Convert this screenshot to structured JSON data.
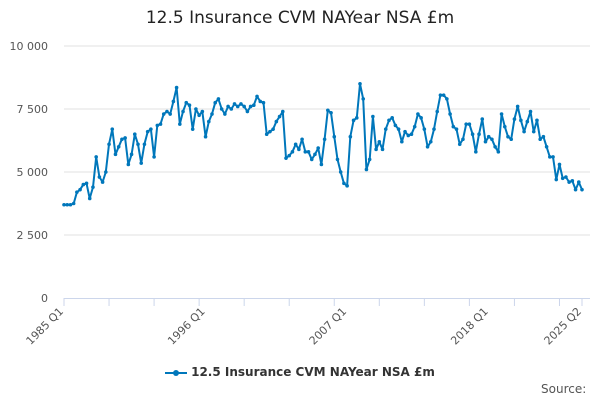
{
  "chart_data": {
    "type": "line",
    "title": "12.5 Insurance CVM NAYear NSA £m",
    "xlabel": "",
    "ylabel": "",
    "ylim": [
      0,
      10000
    ],
    "yticks": [
      0,
      2500,
      5000,
      7500,
      10000
    ],
    "ytick_labels": [
      "0",
      "2 500",
      "5 000",
      "7 500",
      "10 000"
    ],
    "xtick_labels": [
      {
        "label": "1985 Q1",
        "index": 0
      },
      {
        "label": "1996 Q1",
        "index": 44
      },
      {
        "label": "2007 Q1",
        "index": 88
      },
      {
        "label": "2018 Q1",
        "index": 132
      },
      {
        "label": "2025 Q2",
        "index": 161
      }
    ],
    "grid": true,
    "legend_position": "bottom",
    "start": "1985 Q1",
    "end": "2025 Q2",
    "frequency": "quarterly",
    "series": [
      {
        "name": "12.5 Insurance CVM NAYear NSA £m",
        "color": "#0077bb",
        "values": [
          3700,
          3700,
          3700,
          3750,
          4200,
          4300,
          4500,
          4550,
          3950,
          4400,
          5600,
          4800,
          4600,
          5000,
          6100,
          6700,
          5700,
          6000,
          6300,
          6350,
          5300,
          5700,
          6500,
          6100,
          5350,
          6100,
          6600,
          6700,
          5600,
          6850,
          6900,
          7300,
          7400,
          7300,
          7800,
          8350,
          6900,
          7400,
          7750,
          7650,
          6700,
          7500,
          7250,
          7400,
          6400,
          7000,
          7300,
          7750,
          7900,
          7500,
          7300,
          7600,
          7500,
          7700,
          7600,
          7700,
          7600,
          7400,
          7600,
          7650,
          8000,
          7800,
          7750,
          6500,
          6600,
          6700,
          7000,
          7200,
          7400,
          5550,
          5650,
          5800,
          6100,
          5900,
          6300,
          5800,
          5800,
          5500,
          5700,
          5950,
          5300,
          6300,
          7450,
          7350,
          6400,
          5500,
          5000,
          4550,
          4450,
          6400,
          7050,
          7150,
          8500,
          7900,
          5100,
          5500,
          7200,
          5900,
          6200,
          5900,
          6700,
          7050,
          7150,
          6850,
          6700,
          6200,
          6600,
          6450,
          6500,
          6800,
          7300,
          7150,
          6700,
          6000,
          6200,
          6700,
          7400,
          8050,
          8050,
          7900,
          7300,
          6800,
          6700,
          6100,
          6300,
          6900,
          6900,
          6500,
          5800,
          6500,
          7100,
          6200,
          6400,
          6300,
          6000,
          5800,
          7300,
          6800,
          6400,
          6300,
          7100,
          7600,
          7050,
          6600,
          7000,
          7400,
          6600,
          7050,
          6300,
          6400,
          6000,
          5600,
          5600,
          4700,
          5300,
          4750,
          4800,
          4600,
          4650,
          4300,
          4600,
          4300
        ]
      }
    ]
  },
  "legend_label": "12.5 Insurance CVM NAYear NSA £m",
  "source_label": "Source:"
}
